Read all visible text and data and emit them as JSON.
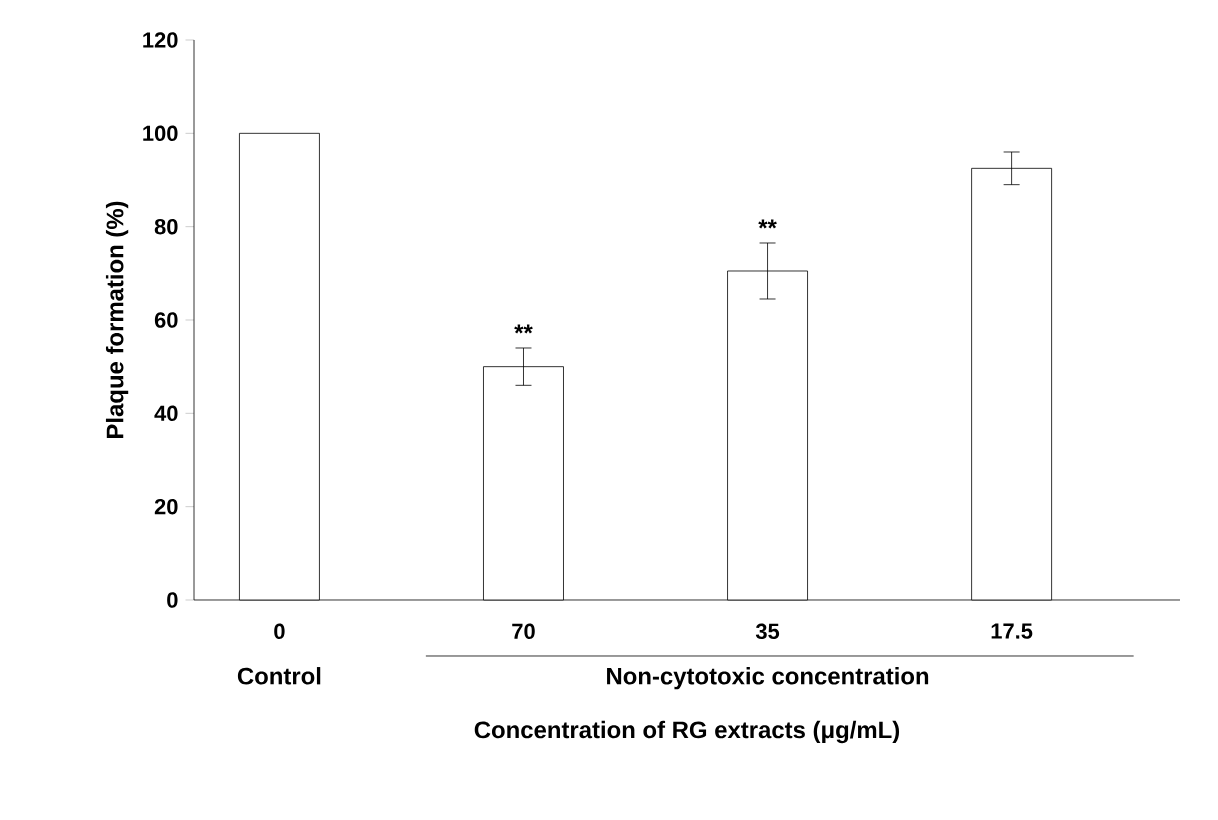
{
  "chart_data": {
    "type": "bar",
    "xlabel": "Concentration of RG extracts (μg/mL)",
    "ylabel": "Plaque formation (%)",
    "categories": [
      "0",
      "70",
      "35",
      "17.5"
    ],
    "values": [
      100,
      50,
      70.5,
      92.5
    ],
    "errors": [
      null,
      4,
      6,
      3.5
    ],
    "color": "#ffffff",
    "ylim": [
      0,
      120
    ],
    "yticks": [
      0,
      20,
      40,
      60,
      80,
      100,
      120
    ],
    "annotations": [
      "Control",
      "Non-cytotoxic concentration",
      {
        "text": "**",
        "x": "70",
        "y": 54
      },
      {
        "text": "**",
        "x": "35",
        "y": 76.5
      }
    ]
  }
}
